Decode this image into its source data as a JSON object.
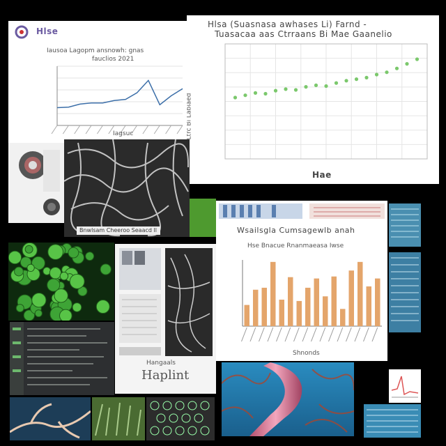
{
  "panel_top_left": {
    "logo_text": "Hlse",
    "title": "Iausoa Lagopm ansnowh: gnas",
    "subtitle": "fauclios 2021",
    "xlabel": "Iagsuc"
  },
  "panel_top_right": {
    "title_line1": "Hlsa (Suasnasa awhases Li) Farnd -",
    "title_line2": "Tuasacaa aas Ctrraans Bi Mae Gaanelio",
    "xlabel": "Hae",
    "ylabel": "Ltrc Bi Labiaed"
  },
  "panel_mid": {
    "caption": "Bnwlsam Cheeroo Seaacd ll"
  },
  "panel_right_bar": {
    "title": "Wsailsgla Cumsagewlb anah",
    "subtitle": "Hse Bnacue Rnanmaeasa Iwse",
    "xlabel": "Shnonds"
  },
  "panel_doc": {
    "caption_line1": "Hangaals",
    "caption_line2": "Haplint"
  },
  "chart_data": [
    {
      "type": "line",
      "title": "",
      "x": [
        1,
        2,
        3,
        4,
        5,
        6,
        7,
        8,
        9,
        10,
        11,
        12
      ],
      "series": [
        {
          "values": [
            0.3,
            0.31,
            0.36,
            0.38,
            0.38,
            0.42,
            0.44,
            0.55,
            0.76,
            0.35,
            0.5,
            0.62
          ]
        }
      ],
      "ylim": [
        0,
        1
      ],
      "grid": true
    },
    {
      "type": "scatter",
      "title": "",
      "x": [
        1,
        2,
        3,
        4,
        5,
        6,
        7,
        8,
        9,
        10,
        11,
        12,
        13,
        14,
        15,
        16,
        17,
        18,
        19
      ],
      "y": [
        8.0,
        8.3,
        8.6,
        8.5,
        8.9,
        9.1,
        9.0,
        9.4,
        9.6,
        9.5,
        9.9,
        10.2,
        10.4,
        10.6,
        11.0,
        11.3,
        11.8,
        12.4,
        13.0
      ],
      "ylim": [
        0,
        15
      ],
      "grid": true,
      "color": "#7bc86c"
    },
    {
      "type": "bar",
      "title": "",
      "categories": [
        "",
        "",
        "",
        "",
        "",
        "",
        "",
        "",
        "",
        "",
        "",
        "",
        "",
        "",
        "",
        ""
      ],
      "values": [
        32,
        55,
        58,
        97,
        40,
        74,
        38,
        58,
        72,
        45,
        75,
        26,
        84,
        97,
        60,
        72
      ],
      "ylim": [
        0,
        100
      ],
      "color": "#e4a56b"
    }
  ]
}
